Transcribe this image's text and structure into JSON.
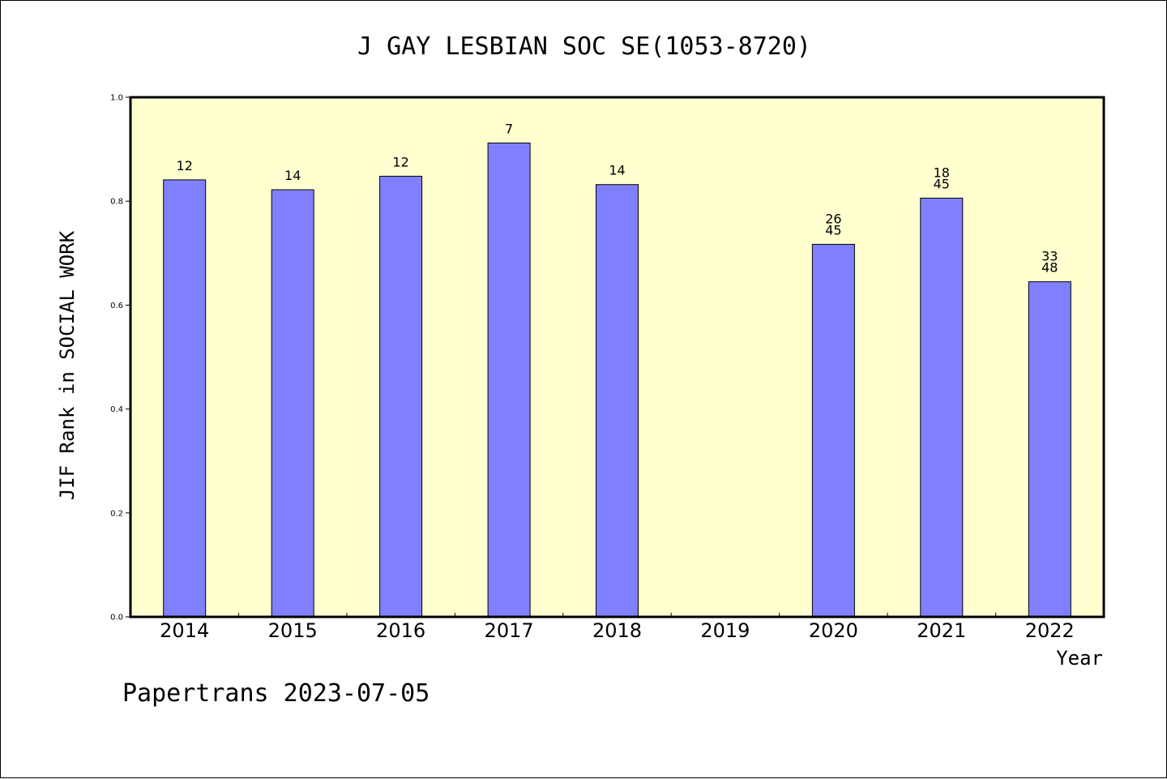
{
  "chart_data": {
    "type": "bar",
    "title": "J GAY LESBIAN SOC SE(1053-8720)",
    "ylabel": "JIF Rank in SOCIAL WORK",
    "xlabel": "Year",
    "categories": [
      "2014",
      "2015",
      "2016",
      "2017",
      "2018",
      "2019",
      "2020",
      "2021",
      "2022"
    ],
    "values": [
      0.841,
      0.822,
      0.848,
      0.912,
      0.832,
      null,
      0.717,
      0.806,
      0.645
    ],
    "bar_labels": [
      [
        "12"
      ],
      [
        "14"
      ],
      [
        "12"
      ],
      [
        "7"
      ],
      [
        "14"
      ],
      [],
      [
        "26",
        "45"
      ],
      [
        "18",
        "45"
      ],
      [
        "33",
        "48"
      ]
    ],
    "ylim": [
      0,
      1.0
    ],
    "yticks": [
      "0.0",
      "0.2",
      "0.4",
      "0.6",
      "0.8",
      "1.0"
    ],
    "grid": false,
    "colors": {
      "bar_fill": "#8080ff",
      "plot_background": "#ffffd0",
      "axis": "#000000"
    }
  },
  "footer": "Papertrans 2023-07-05"
}
